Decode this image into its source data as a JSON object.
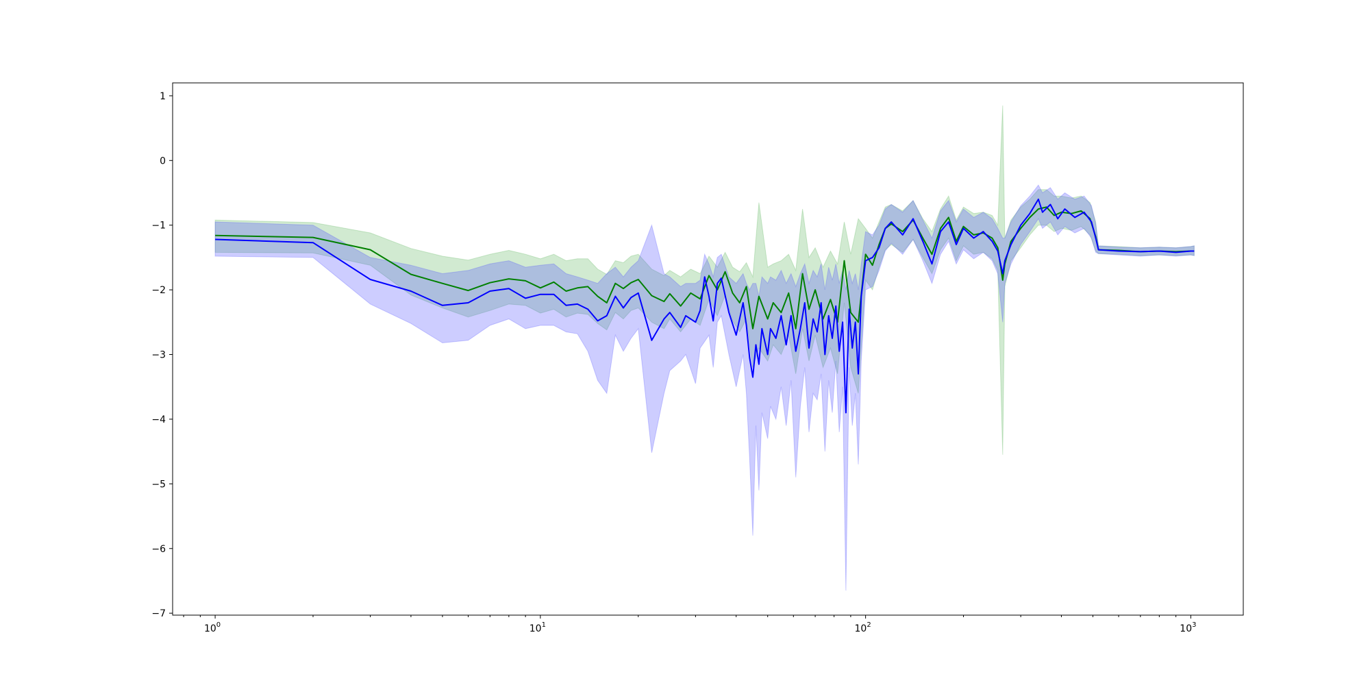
{
  "chart_data": {
    "type": "line",
    "title": "",
    "xlabel": "",
    "ylabel": "",
    "xscale": "log",
    "xlim": [
      0.74,
      1450
    ],
    "ylim": [
      -7.03,
      1.2
    ],
    "grid": false,
    "x_ticks": [
      {
        "value": 1,
        "base": "10",
        "exp": "0"
      },
      {
        "value": 10,
        "base": "10",
        "exp": "1"
      },
      {
        "value": 100,
        "base": "10",
        "exp": "2"
      },
      {
        "value": 1000,
        "base": "10",
        "exp": "3"
      }
    ],
    "y_ticks": [
      {
        "value": 1,
        "label": "1"
      },
      {
        "value": 0,
        "label": "0"
      },
      {
        "value": -1,
        "label": "−1"
      },
      {
        "value": -2,
        "label": "−2"
      },
      {
        "value": -3,
        "label": "−3"
      },
      {
        "value": -4,
        "label": "−4"
      },
      {
        "value": -5,
        "label": "−5"
      },
      {
        "value": -6,
        "label": "−6"
      },
      {
        "value": -7,
        "label": "−7"
      }
    ],
    "series": [
      {
        "color": "#008000",
        "band_color": "#2ca02c",
        "band_opacity": 0.22,
        "points": [
          [
            1,
            -1.16,
            -0.92,
            -1.42
          ],
          [
            2,
            -1.19,
            -0.96,
            -1.43
          ],
          [
            3,
            -1.38,
            -1.12,
            -1.62
          ],
          [
            4,
            -1.76,
            -1.36,
            -2.08
          ],
          [
            5,
            -1.9,
            -1.48,
            -2.28
          ],
          [
            6,
            -2.01,
            -1.54,
            -2.42
          ],
          [
            7,
            -1.89,
            -1.45,
            -2.32
          ],
          [
            8,
            -1.83,
            -1.39,
            -2.22
          ],
          [
            9,
            -1.86,
            -1.45,
            -2.24
          ],
          [
            10,
            -1.97,
            -1.52,
            -2.36
          ],
          [
            11,
            -1.88,
            -1.45,
            -2.3
          ],
          [
            12,
            -2.02,
            -1.55,
            -2.42
          ],
          [
            13,
            -1.97,
            -1.52,
            -2.36
          ],
          [
            14,
            -1.95,
            -1.52,
            -2.38
          ],
          [
            15,
            -2.1,
            -1.68,
            -2.52
          ],
          [
            16,
            -2.2,
            -1.76,
            -2.62
          ],
          [
            17,
            -1.9,
            -1.55,
            -2.35
          ],
          [
            18,
            -1.98,
            -1.58,
            -2.45
          ],
          [
            19,
            -1.89,
            -1.48,
            -2.32
          ],
          [
            20,
            -1.84,
            -1.45,
            -2.28
          ],
          [
            22,
            -2.09,
            -1.68,
            -2.5
          ],
          [
            24,
            -2.18,
            -1.78,
            -2.6
          ],
          [
            25,
            -2.06,
            -1.7,
            -2.45
          ],
          [
            27,
            -2.25,
            -1.8,
            -2.65
          ],
          [
            29,
            -2.05,
            -1.68,
            -2.45
          ],
          [
            31,
            -2.14,
            -1.75,
            -2.55
          ],
          [
            33,
            -1.78,
            -1.48,
            -2.15
          ],
          [
            35,
            -2.0,
            -1.65,
            -2.4
          ],
          [
            37,
            -1.72,
            -1.42,
            -2.08
          ],
          [
            39,
            -2.05,
            -1.65,
            -2.48
          ],
          [
            41,
            -2.2,
            -1.72,
            -2.65
          ],
          [
            43,
            -1.95,
            -1.58,
            -2.45
          ],
          [
            45,
            -2.6,
            -1.8,
            -3.2
          ],
          [
            47,
            -2.1,
            -0.65,
            -2.9
          ],
          [
            50,
            -2.45,
            -1.65,
            -3.1
          ],
          [
            52,
            -2.2,
            -1.6,
            -2.85
          ],
          [
            55,
            -2.35,
            -1.55,
            -3.0
          ],
          [
            58,
            -2.05,
            -1.45,
            -2.7
          ],
          [
            61,
            -2.6,
            -1.7,
            -3.3
          ],
          [
            64,
            -1.75,
            -0.75,
            -2.6
          ],
          [
            67,
            -2.3,
            -1.5,
            -3.1
          ],
          [
            70,
            -2.0,
            -1.35,
            -2.7
          ],
          [
            74,
            -2.45,
            -1.65,
            -3.2
          ],
          [
            78,
            -2.15,
            -1.4,
            -2.9
          ],
          [
            82,
            -2.5,
            -1.6,
            -3.3
          ],
          [
            86,
            -1.55,
            -0.95,
            -2.2
          ],
          [
            90,
            -2.35,
            -1.45,
            -3.2
          ],
          [
            95,
            -2.5,
            -0.9,
            -3.6
          ],
          [
            100,
            -1.45,
            -1.05,
            -1.85
          ],
          [
            105,
            -1.62,
            -1.2,
            -2.0
          ],
          [
            110,
            -1.3,
            -0.95,
            -1.65
          ],
          [
            115,
            -1.05,
            -0.72,
            -1.38
          ],
          [
            120,
            -0.98,
            -0.68,
            -1.3
          ],
          [
            130,
            -1.1,
            -0.78,
            -1.42
          ],
          [
            140,
            -0.92,
            -0.62,
            -1.22
          ],
          [
            150,
            -1.2,
            -0.9,
            -1.5
          ],
          [
            160,
            -1.45,
            -1.1,
            -1.75
          ],
          [
            170,
            -1.05,
            -0.75,
            -1.38
          ],
          [
            180,
            -0.88,
            -0.55,
            -1.2
          ],
          [
            190,
            -1.25,
            -0.92,
            -1.55
          ],
          [
            200,
            -1.02,
            -0.72,
            -1.32
          ],
          [
            215,
            -1.15,
            -0.82,
            -1.45
          ],
          [
            230,
            -1.12,
            -0.8,
            -1.42
          ],
          [
            245,
            -1.2,
            -0.85,
            -1.52
          ],
          [
            255,
            -1.35,
            -1.0,
            -1.7
          ],
          [
            264,
            -1.85,
            0.85,
            -4.55
          ],
          [
            268,
            -1.6,
            -1.2,
            -1.95
          ],
          [
            280,
            -1.25,
            -0.92,
            -1.55
          ],
          [
            300,
            -1.05,
            -0.72,
            -1.35
          ],
          [
            320,
            -0.88,
            -0.6,
            -1.15
          ],
          [
            340,
            -0.75,
            -0.45,
            -1.0
          ],
          [
            360,
            -0.72,
            -0.45,
            -1.0
          ],
          [
            380,
            -0.85,
            -0.55,
            -1.1
          ],
          [
            400,
            -0.8,
            -0.55,
            -1.05
          ],
          [
            430,
            -0.82,
            -0.58,
            -1.08
          ],
          [
            460,
            -0.78,
            -0.55,
            -1.02
          ],
          [
            490,
            -0.9,
            -0.65,
            -1.15
          ],
          [
            510,
            -1.18,
            -0.95,
            -1.4
          ],
          [
            520,
            -1.38,
            -1.32,
            -1.44
          ],
          [
            600,
            -1.39,
            -1.33,
            -1.45
          ],
          [
            700,
            -1.41,
            -1.35,
            -1.47
          ],
          [
            800,
            -1.4,
            -1.34,
            -1.46
          ],
          [
            900,
            -1.41,
            -1.35,
            -1.47
          ],
          [
            1000,
            -1.4,
            -1.33,
            -1.46
          ],
          [
            1024,
            -1.4,
            -1.32,
            -1.47
          ]
        ]
      },
      {
        "color": "#0000ff",
        "band_color": "#4a4aff",
        "band_opacity": 0.28,
        "points": [
          [
            1,
            -1.22,
            -0.95,
            -1.48
          ],
          [
            2,
            -1.27,
            -1.0,
            -1.5
          ],
          [
            3,
            -1.84,
            -1.5,
            -2.22
          ],
          [
            4,
            -2.02,
            -1.62,
            -2.52
          ],
          [
            5,
            -2.24,
            -1.75,
            -2.82
          ],
          [
            6,
            -2.2,
            -1.7,
            -2.78
          ],
          [
            7,
            -2.02,
            -1.6,
            -2.55
          ],
          [
            8,
            -1.98,
            -1.55,
            -2.45
          ],
          [
            9,
            -2.13,
            -1.65,
            -2.6
          ],
          [
            10,
            -2.07,
            -1.62,
            -2.55
          ],
          [
            11,
            -2.07,
            -1.6,
            -2.55
          ],
          [
            12,
            -2.24,
            -1.75,
            -2.65
          ],
          [
            13,
            -2.22,
            -1.8,
            -2.68
          ],
          [
            14,
            -2.3,
            -1.85,
            -2.95
          ],
          [
            15,
            -2.48,
            -1.9,
            -3.4
          ],
          [
            16,
            -2.4,
            -1.75,
            -3.6
          ],
          [
            17,
            -2.1,
            -1.65,
            -2.7
          ],
          [
            18,
            -2.28,
            -1.8,
            -2.95
          ],
          [
            19,
            -2.12,
            -1.65,
            -2.75
          ],
          [
            20,
            -2.05,
            -1.55,
            -2.6
          ],
          [
            22,
            -2.78,
            -1.0,
            -4.52
          ],
          [
            24,
            -2.45,
            -1.75,
            -3.6
          ],
          [
            25,
            -2.35,
            -1.8,
            -3.25
          ],
          [
            27,
            -2.58,
            -1.95,
            -3.1
          ],
          [
            28,
            -2.4,
            -1.9,
            -3.0
          ],
          [
            30,
            -2.5,
            -1.9,
            -3.45
          ],
          [
            31,
            -2.32,
            -1.85,
            -2.9
          ],
          [
            32,
            -1.8,
            -1.45,
            -2.8
          ],
          [
            33,
            -2.1,
            -1.6,
            -2.7
          ],
          [
            34,
            -2.48,
            -1.8,
            -3.2
          ],
          [
            35,
            -1.9,
            -1.5,
            -2.5
          ],
          [
            36,
            -1.82,
            -1.45,
            -2.4
          ],
          [
            38,
            -2.35,
            -1.8,
            -3.0
          ],
          [
            40,
            -2.7,
            -1.9,
            -3.5
          ],
          [
            42,
            -2.2,
            -1.75,
            -3.0
          ],
          [
            43,
            -2.55,
            -1.9,
            -3.6
          ],
          [
            44,
            -3.05,
            -2.0,
            -4.6
          ],
          [
            45,
            -3.35,
            -1.9,
            -5.8
          ],
          [
            46,
            -2.85,
            -1.9,
            -4.1
          ],
          [
            47,
            -3.15,
            -2.1,
            -5.1
          ],
          [
            48,
            -2.6,
            -1.8,
            -3.9
          ],
          [
            50,
            -3.0,
            -1.9,
            -4.3
          ],
          [
            51,
            -2.6,
            -1.8,
            -3.8
          ],
          [
            53,
            -2.75,
            -1.85,
            -4.0
          ],
          [
            55,
            -2.4,
            -1.7,
            -3.5
          ],
          [
            57,
            -2.85,
            -1.9,
            -4.1
          ],
          [
            59,
            -2.4,
            -1.75,
            -3.4
          ],
          [
            61,
            -2.95,
            -1.95,
            -4.9
          ],
          [
            63,
            -2.6,
            -1.75,
            -3.8
          ],
          [
            65,
            -2.2,
            -1.6,
            -3.2
          ],
          [
            67,
            -2.9,
            -1.9,
            -4.2
          ],
          [
            69,
            -2.45,
            -1.7,
            -3.6
          ],
          [
            71,
            -2.65,
            -1.8,
            -3.7
          ],
          [
            73,
            -2.2,
            -1.6,
            -3.3
          ],
          [
            75,
            -3.0,
            -2.0,
            -4.5
          ],
          [
            77,
            -2.4,
            -1.65,
            -3.4
          ],
          [
            79,
            -2.75,
            -1.85,
            -3.9
          ],
          [
            81,
            -2.25,
            -1.6,
            -3.1
          ],
          [
            83,
            -2.95,
            -1.9,
            -4.2
          ],
          [
            85,
            -2.5,
            -1.7,
            -3.5
          ],
          [
            87,
            -3.9,
            -2.0,
            -6.65
          ],
          [
            89,
            -2.3,
            -1.7,
            -3.2
          ],
          [
            91,
            -2.9,
            -1.9,
            -4.1
          ],
          [
            93,
            -2.5,
            -1.75,
            -3.6
          ],
          [
            95,
            -3.3,
            -2.0,
            -4.7
          ],
          [
            97,
            -2.1,
            -1.6,
            -3.1
          ],
          [
            100,
            -1.55,
            -1.1,
            -2.0
          ],
          [
            105,
            -1.5,
            -1.15,
            -1.95
          ],
          [
            110,
            -1.35,
            -1.0,
            -1.7
          ],
          [
            115,
            -1.05,
            -0.75,
            -1.4
          ],
          [
            120,
            -0.95,
            -0.68,
            -1.28
          ],
          [
            130,
            -1.15,
            -0.8,
            -1.45
          ],
          [
            140,
            -0.9,
            -0.62,
            -1.22
          ],
          [
            150,
            -1.25,
            -0.92,
            -1.55
          ],
          [
            160,
            -1.6,
            -1.2,
            -1.9
          ],
          [
            170,
            -1.1,
            -0.78,
            -1.45
          ],
          [
            180,
            -0.95,
            -0.62,
            -1.25
          ],
          [
            190,
            -1.3,
            -0.95,
            -1.6
          ],
          [
            200,
            -1.05,
            -0.75,
            -1.38
          ],
          [
            215,
            -1.2,
            -0.88,
            -1.52
          ],
          [
            230,
            -1.1,
            -0.8,
            -1.42
          ],
          [
            245,
            -1.25,
            -0.9,
            -1.55
          ],
          [
            255,
            -1.4,
            -1.05,
            -1.75
          ],
          [
            264,
            -1.75,
            -1.2,
            -2.5
          ],
          [
            268,
            -1.55,
            -1.2,
            -1.9
          ],
          [
            280,
            -1.3,
            -0.95,
            -1.6
          ],
          [
            300,
            -1.0,
            -0.7,
            -1.3
          ],
          [
            320,
            -0.82,
            -0.55,
            -1.1
          ],
          [
            340,
            -0.6,
            -0.38,
            -0.9
          ],
          [
            350,
            -0.8,
            -0.5,
            -1.05
          ],
          [
            370,
            -0.68,
            -0.42,
            -0.95
          ],
          [
            390,
            -0.9,
            -0.6,
            -1.15
          ],
          [
            410,
            -0.75,
            -0.5,
            -1.02
          ],
          [
            440,
            -0.88,
            -0.6,
            -1.12
          ],
          [
            470,
            -0.8,
            -0.55,
            -1.05
          ],
          [
            495,
            -0.95,
            -0.7,
            -1.2
          ],
          [
            510,
            -1.2,
            -0.98,
            -1.42
          ],
          [
            520,
            -1.38,
            -1.32,
            -1.44
          ],
          [
            600,
            -1.4,
            -1.34,
            -1.46
          ],
          [
            700,
            -1.41,
            -1.35,
            -1.48
          ],
          [
            800,
            -1.4,
            -1.34,
            -1.46
          ],
          [
            900,
            -1.42,
            -1.35,
            -1.48
          ],
          [
            1000,
            -1.4,
            -1.33,
            -1.46
          ],
          [
            1024,
            -1.4,
            -1.32,
            -1.47
          ]
        ]
      }
    ]
  }
}
